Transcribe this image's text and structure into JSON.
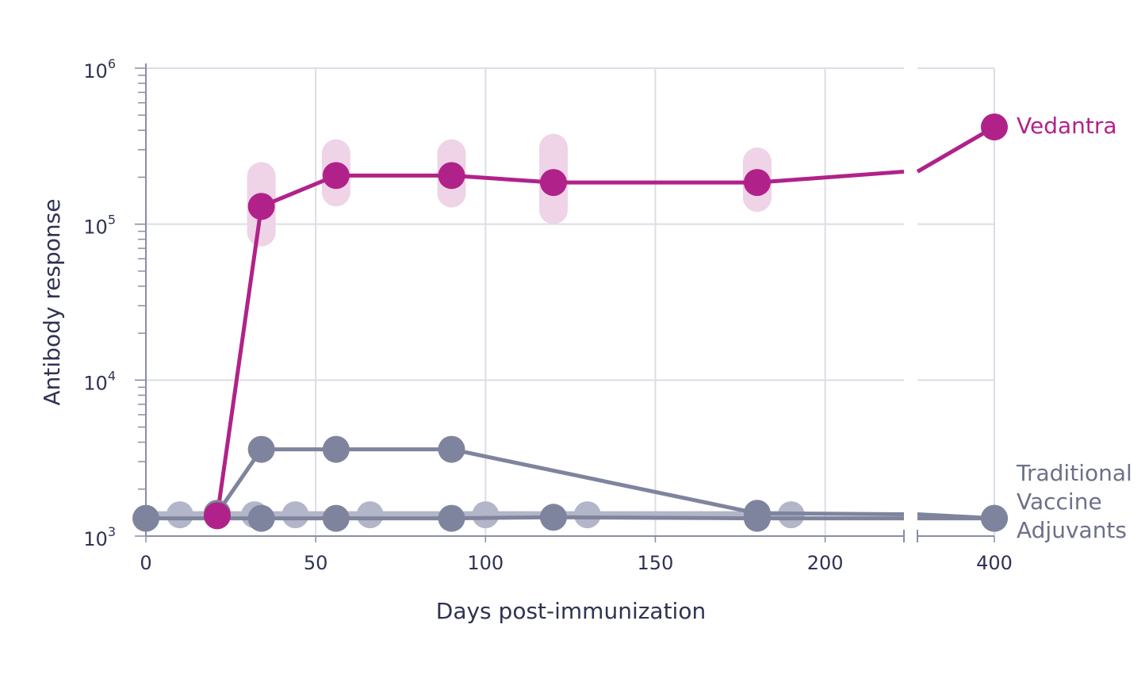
{
  "chart_data": {
    "type": "line",
    "title": "",
    "xlabel": "Days post-immunization",
    "ylabel": "Antibody response",
    "y_scale": "log",
    "ylim": [
      1000,
      1000000
    ],
    "y_ticks": [
      {
        "base": "10",
        "exp": "3"
      },
      {
        "base": "10",
        "exp": "4"
      },
      {
        "base": "10",
        "exp": "5"
      },
      {
        "base": "10",
        "exp": "6"
      }
    ],
    "x_ticks": [
      "0",
      "50",
      "100",
      "150",
      "200",
      "400"
    ],
    "x_axis_break": "between 200 and 400",
    "grid": true,
    "colors": {
      "vedantra": "#b0228a",
      "vedantra_band": "#efd3e6",
      "traditional": "#7f849e",
      "traditional_light": "#b3b6c8"
    },
    "series": [
      {
        "name": "Vedantra",
        "x": [
          21,
          34,
          56,
          90,
          120,
          180,
          400
        ],
        "y": [
          1350,
          130000,
          205000,
          205000,
          185000,
          185000,
          420000
        ],
        "error_low": [
          null,
          72000,
          130000,
          128000,
          100000,
          120000,
          null
        ],
        "error_high": [
          null,
          250000,
          350000,
          350000,
          380000,
          310000,
          null
        ]
      },
      {
        "name": "Traditional Vaccine Adjuvants",
        "x": [
          21,
          34,
          56,
          90,
          180,
          400
        ],
        "y": [
          1400,
          3600,
          3600,
          3600,
          1400,
          1300
        ]
      },
      {
        "name": "",
        "x": [
          0,
          34,
          56,
          90,
          120,
          180,
          400
        ],
        "y": [
          1300,
          1300,
          1300,
          1300,
          1320,
          1300,
          1300
        ]
      },
      {
        "name": "",
        "x": [
          10,
          32,
          44,
          66,
          100,
          130,
          190
        ],
        "y": [
          1370,
          1370,
          1370,
          1370,
          1370,
          1370,
          1370
        ]
      }
    ],
    "legend": [
      {
        "lines": [
          "Vedantra"
        ],
        "placement": "right-top"
      },
      {
        "lines": [
          "Traditional",
          "Vaccine",
          "Adjuvants"
        ],
        "placement": "right-bottom"
      }
    ]
  }
}
